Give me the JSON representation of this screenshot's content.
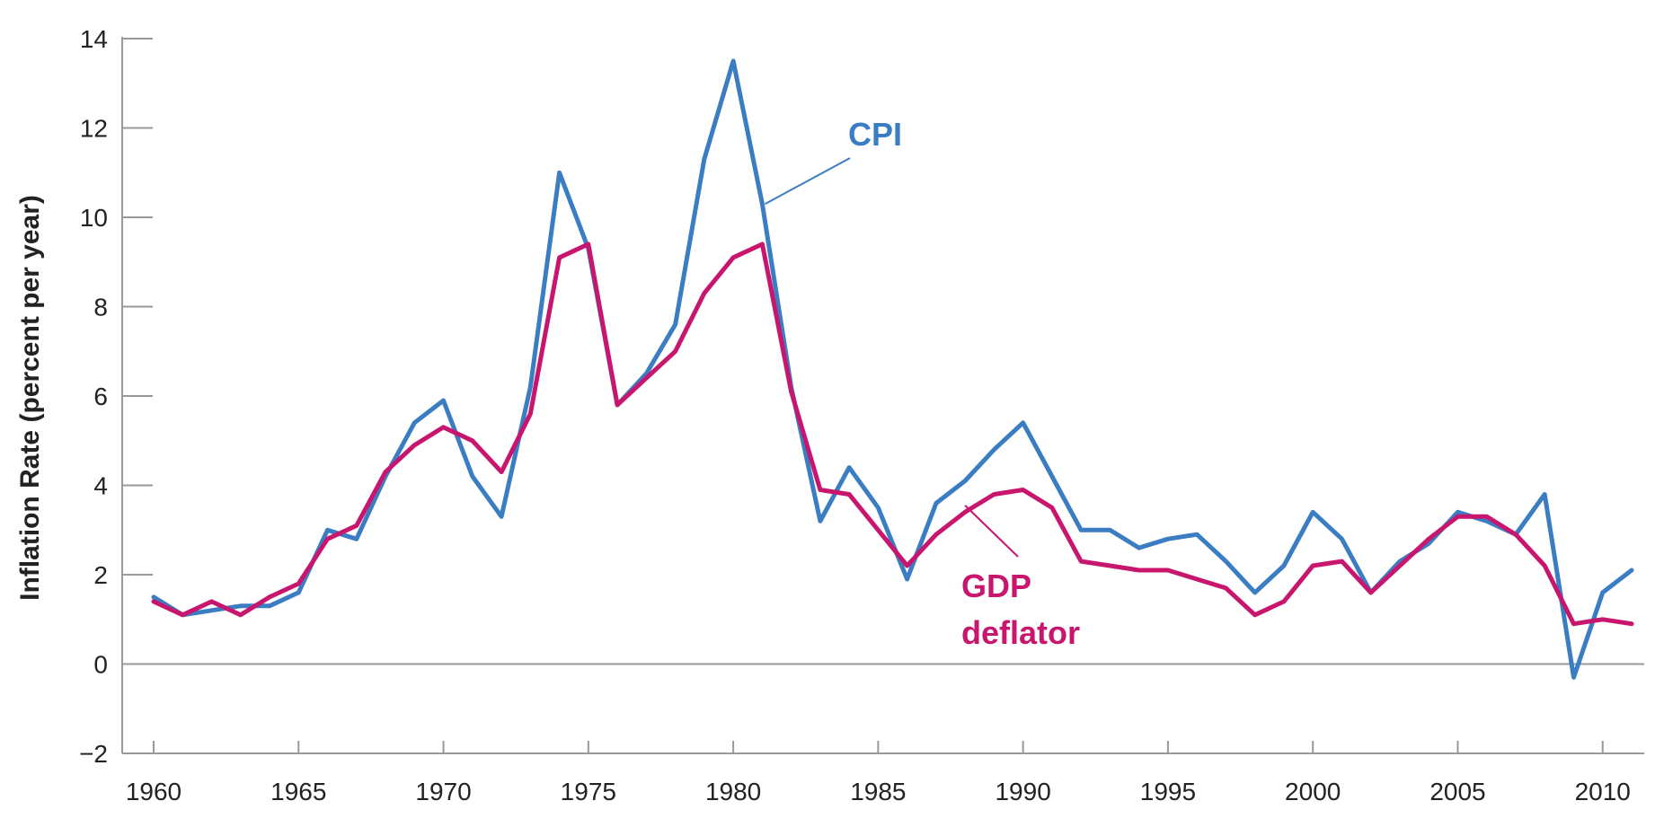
{
  "chart_data": {
    "type": "line",
    "title": "",
    "xlabel": "",
    "ylabel": "Inflation Rate (percent per year)",
    "xlim": [
      1960,
      2011
    ],
    "ylim": [
      -2,
      14
    ],
    "x_ticks": [
      "1960",
      "1965",
      "1970",
      "1975",
      "1980",
      "1985",
      "1990",
      "1995",
      "2000",
      "2005",
      "2010"
    ],
    "y_ticks": [
      "14",
      "12",
      "10",
      "8",
      "6",
      "4",
      "2",
      "0",
      "−2"
    ],
    "grid": false,
    "zero_line": true,
    "x": [
      1960,
      1961,
      1962,
      1963,
      1964,
      1965,
      1966,
      1967,
      1968,
      1969,
      1970,
      1971,
      1972,
      1973,
      1974,
      1975,
      1976,
      1977,
      1978,
      1979,
      1980,
      1981,
      1982,
      1983,
      1984,
      1985,
      1986,
      1987,
      1988,
      1989,
      1990,
      1991,
      1992,
      1993,
      1994,
      1995,
      1996,
      1997,
      1998,
      1999,
      2000,
      2001,
      2002,
      2003,
      2004,
      2005,
      2006,
      2007,
      2008,
      2009,
      2010,
      2011
    ],
    "series": [
      {
        "name": "CPI",
        "label_lines": [
          "CPI"
        ],
        "color": "#3a7dc3",
        "values": [
          1.5,
          1.1,
          1.2,
          1.3,
          1.3,
          1.6,
          3.0,
          2.8,
          4.2,
          5.4,
          5.9,
          4.2,
          3.3,
          6.2,
          11.0,
          9.3,
          5.8,
          6.5,
          7.6,
          11.3,
          13.5,
          10.3,
          6.2,
          3.2,
          4.4,
          3.5,
          1.9,
          3.6,
          4.1,
          4.8,
          5.4,
          4.2,
          3.0,
          3.0,
          2.6,
          2.8,
          2.9,
          2.3,
          1.6,
          2.2,
          3.4,
          2.8,
          1.6,
          2.3,
          2.7,
          3.4,
          3.2,
          2.9,
          3.8,
          -0.3,
          1.6,
          2.1
        ]
      },
      {
        "name": "GDP deflator",
        "label_lines": [
          "GDP",
          "deflator"
        ],
        "color": "#c8166e",
        "values": [
          1.4,
          1.1,
          1.4,
          1.1,
          1.5,
          1.8,
          2.8,
          3.1,
          4.3,
          4.9,
          5.3,
          5.0,
          4.3,
          5.6,
          9.1,
          9.4,
          5.8,
          6.4,
          7.0,
          8.3,
          9.1,
          9.4,
          6.1,
          3.9,
          3.8,
          3.0,
          2.2,
          2.9,
          3.4,
          3.8,
          3.9,
          3.5,
          2.3,
          2.2,
          2.1,
          2.1,
          1.9,
          1.7,
          1.1,
          1.4,
          2.2,
          2.3,
          1.6,
          2.2,
          2.8,
          3.3,
          3.3,
          2.9,
          2.2,
          0.9,
          1.0,
          0.9
        ]
      }
    ]
  }
}
